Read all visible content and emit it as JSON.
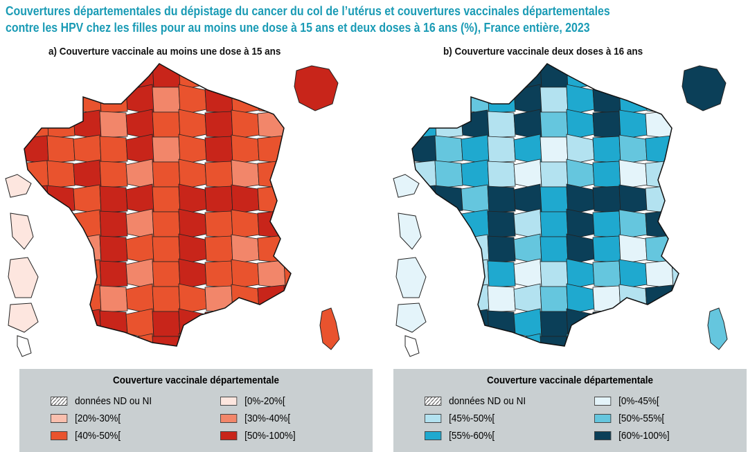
{
  "title_line1": "Couvertures départementales du dépistage du cancer du col de l’utérus et couvertures vaccinales départementales",
  "title_line2": "contre les HPV chez les filles pour au moins une dose à 15 ans et deux doses à 16 ans (%), France entière, 2023",
  "maps": [
    {
      "subtitle": "a) Couverture vaccinale au moins une dose à 15 ans",
      "legend_title": "Couverture vaccinale départementale",
      "legend": [
        {
          "label": "données ND ou NI",
          "color": "hatch"
        },
        {
          "label": "[0%-20%[",
          "color": "#fde6df"
        },
        {
          "label": "[20%-30%[",
          "color": "#f9bfae"
        },
        {
          "label": "[30%-40%[",
          "color": "#f2866a"
        },
        {
          "label": "[40%-50%[",
          "color": "#e9532e"
        },
        {
          "label": "[50%-100%]",
          "color": "#c8251a"
        }
      ]
    },
    {
      "subtitle": "b) Couverture vaccinale deux doses à 16 ans",
      "legend_title": "Couverture vaccinale départementale",
      "legend": [
        {
          "label": "données ND ou NI",
          "color": "hatch"
        },
        {
          "label": "[0%-45%[",
          "color": "#e4f4fa"
        },
        {
          "label": "[45%-50%[",
          "color": "#b3e2f0"
        },
        {
          "label": "[50%-55%[",
          "color": "#65c6de"
        },
        {
          "label": "[55%-60%[",
          "color": "#1fa9cf"
        },
        {
          "label": "[60%-100%]",
          "color": "#0b3f58"
        }
      ]
    }
  ]
}
